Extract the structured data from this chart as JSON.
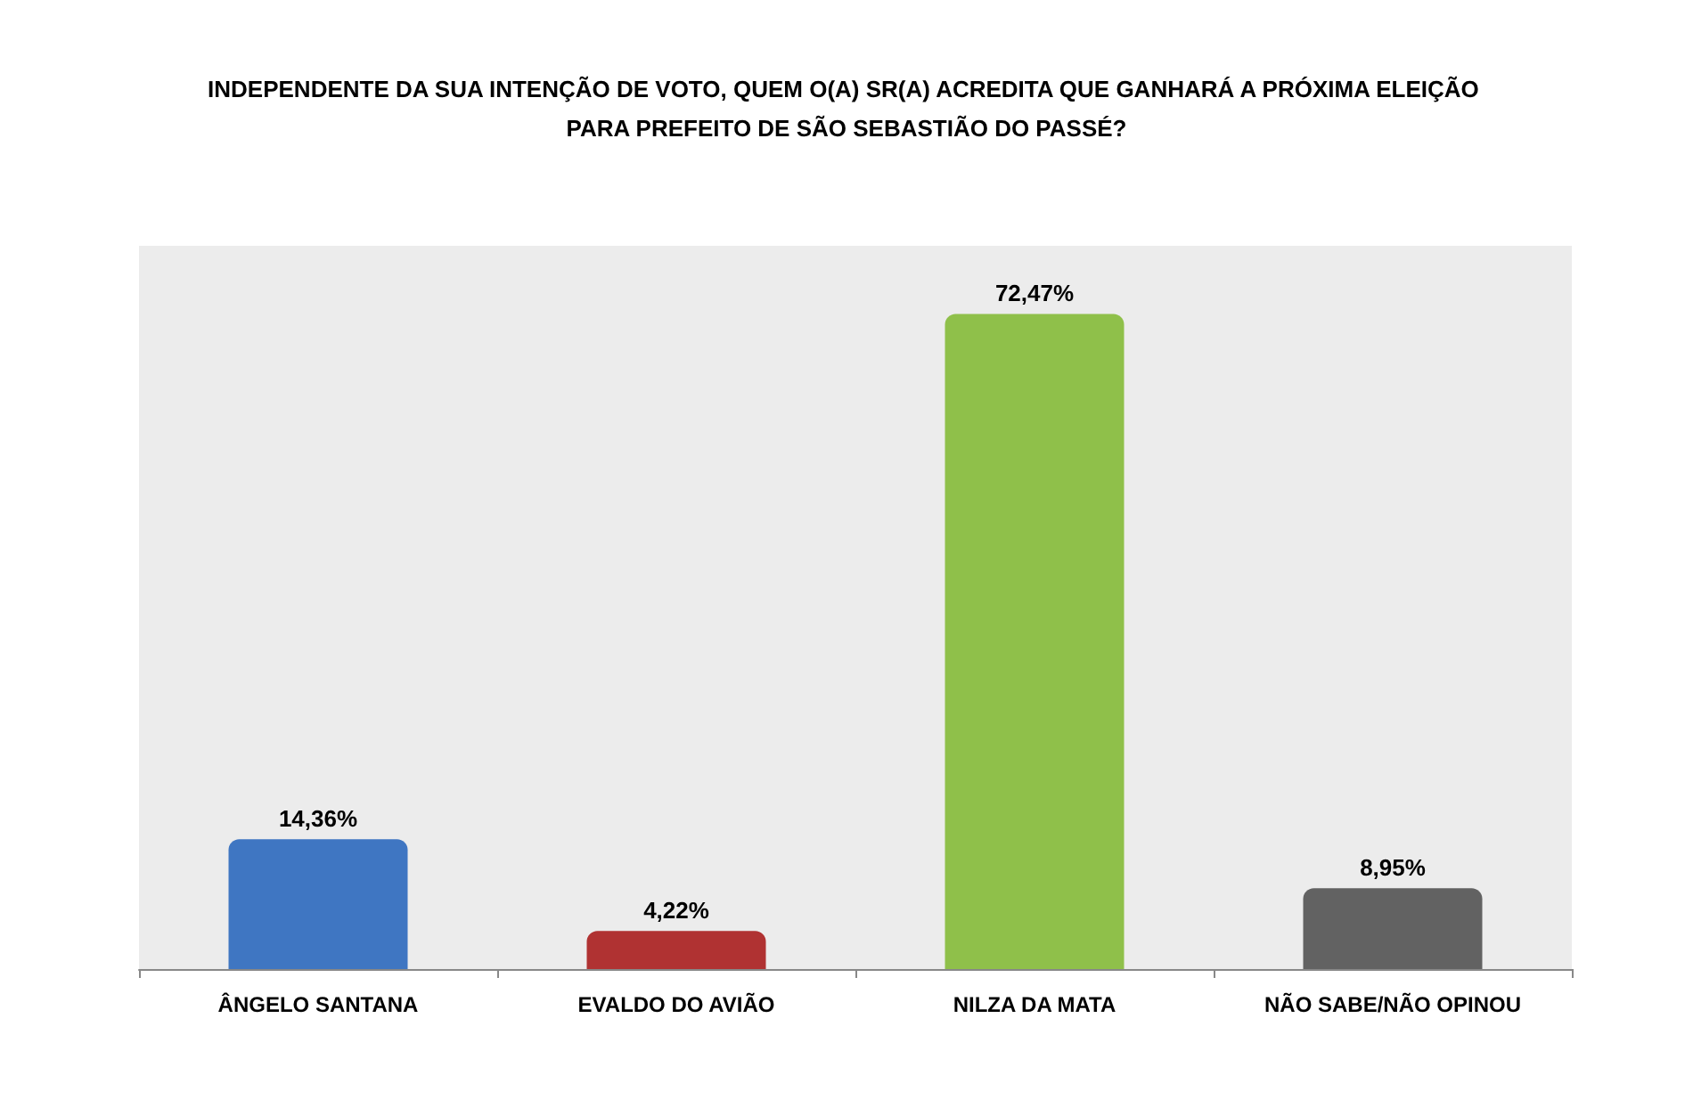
{
  "chart_data": {
    "type": "bar",
    "title": "INDEPENDENTE DA SUA INTENÇÃO DE VOTO, QUEM O(A) SR(A) ACREDITA QUE GANHARÁ A PRÓXIMA ELEIÇÃO PARA PREFEITO DE SÃO SEBASTIÃO DO PASSÉ?",
    "categories": [
      "ÂNGELO SANTANA",
      "EVALDO DO AVIÃO",
      "NILZA DA MATA",
      "NÃO SABE/NÃO OPINOU"
    ],
    "values": [
      14.36,
      4.22,
      72.47,
      8.95
    ],
    "value_labels": [
      "14,36%",
      "4,22%",
      "72,47%",
      "8,95%"
    ],
    "colors": [
      "#3f76c2",
      "#b03232",
      "#8fc04a",
      "#626262"
    ],
    "tick_labels": "x",
    "grid": false
  }
}
